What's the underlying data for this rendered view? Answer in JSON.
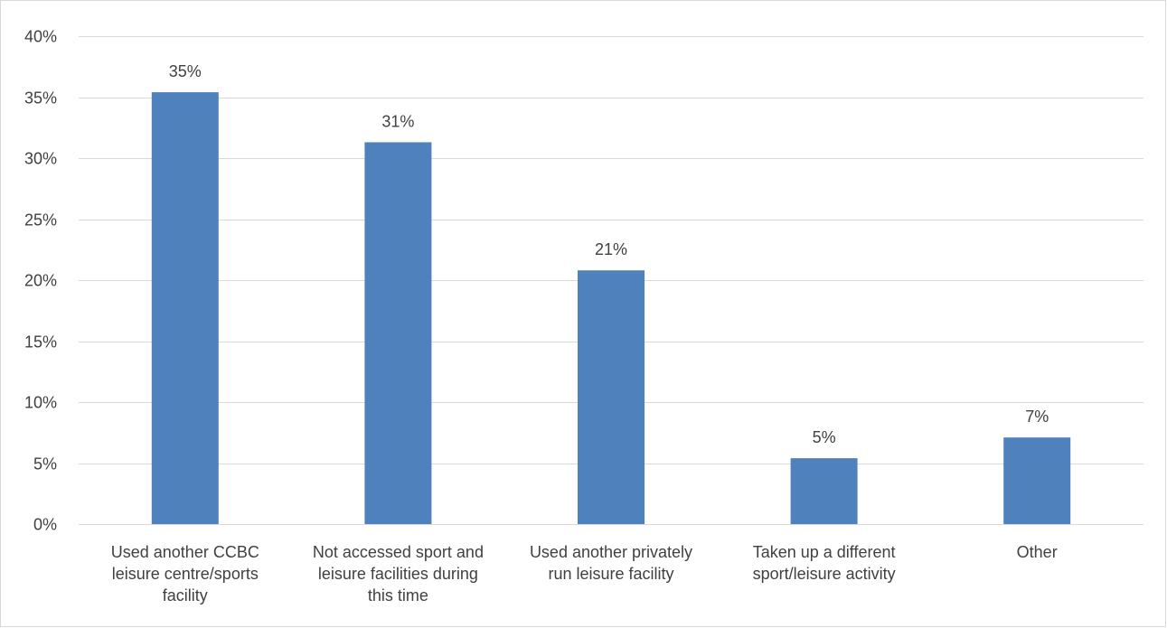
{
  "chart_data": {
    "type": "bar",
    "categories": [
      [
        "Used another CCBC",
        "leisure centre/sports",
        "facility"
      ],
      [
        "Not accessed sport and",
        "leisure facilities during",
        "this time"
      ],
      [
        "Used another privately",
        "run leisure facility"
      ],
      [
        "Taken up a different",
        "sport/leisure activity"
      ],
      [
        "Other"
      ]
    ],
    "values": [
      35.4,
      31.3,
      20.8,
      5.4,
      7.1
    ],
    "data_labels": [
      "35%",
      "31%",
      "21%",
      "5%",
      "7%"
    ],
    "ylim": [
      0,
      40
    ],
    "yticks": [
      0,
      5,
      10,
      15,
      20,
      25,
      30,
      35,
      40
    ],
    "ytick_labels": [
      "0%",
      "5%",
      "10%",
      "15%",
      "20%",
      "25%",
      "30%",
      "35%",
      "40%"
    ],
    "grid": true,
    "legend": "none",
    "bar_color": "#4f81bd"
  }
}
